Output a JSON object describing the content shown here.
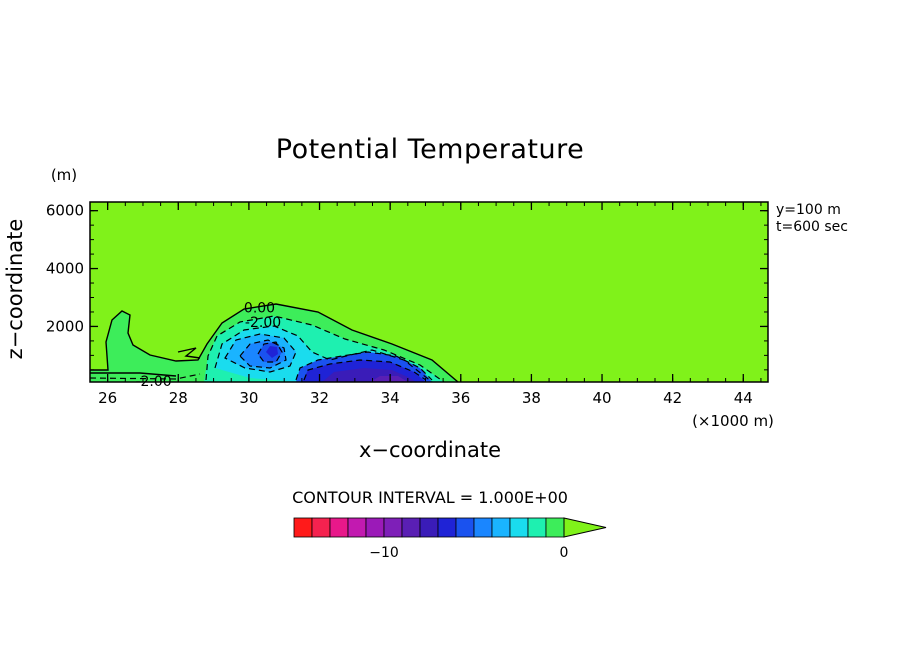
{
  "chart_data": {
    "type": "heatmap",
    "title": "Potential Temperature",
    "xlabel": "x−coordinate",
    "ylabel": "z−coordinate",
    "y_unit": "(m)",
    "x_unit": "(×1000 m)",
    "annotations": [
      "y=100 m",
      "t=600 sec"
    ],
    "xlim": [
      25.5,
      44.7
    ],
    "ylim": [
      80,
      6300
    ],
    "x_ticks": [
      26,
      28,
      30,
      32,
      34,
      36,
      38,
      40,
      42,
      44
    ],
    "y_ticks": [
      2000,
      4000,
      6000
    ],
    "x_minor_step": 0.5,
    "y_minor_step": 500,
    "grid": false,
    "contour_interval_label": "CONTOUR INTERVAL = 1.000E+00",
    "contour_labels": [
      {
        "text": "0.00",
        "x": 30.3,
        "z": 2650
      },
      {
        "text": "-2.00",
        "x": 30.4,
        "z": 2150
      },
      {
        "text": "-2.00",
        "x": 27.3,
        "z": 120
      }
    ],
    "colorbar": {
      "levels": [
        -14,
        -13,
        -12,
        -11,
        -10,
        -9,
        -8,
        -7,
        -6,
        -5,
        -4,
        -3,
        -2,
        -1,
        0
      ],
      "colors": [
        "#ff1a1a",
        "#f5224f",
        "#e8188a",
        "#c21ab0",
        "#9b1ab8",
        "#7e1fb8",
        "#5a1fb4",
        "#3a1cb8",
        "#1f23d6",
        "#1a52ef",
        "#1a86ff",
        "#1ab4ff",
        "#1adcee",
        "#1ef0b0",
        "#3ded5a"
      ],
      "over_color": "#80f21a",
      "tick_labels": [
        {
          "text": "−10",
          "value": -10
        },
        {
          "text": "0",
          "value": 0
        }
      ]
    },
    "background_color": "#80f21a"
  }
}
